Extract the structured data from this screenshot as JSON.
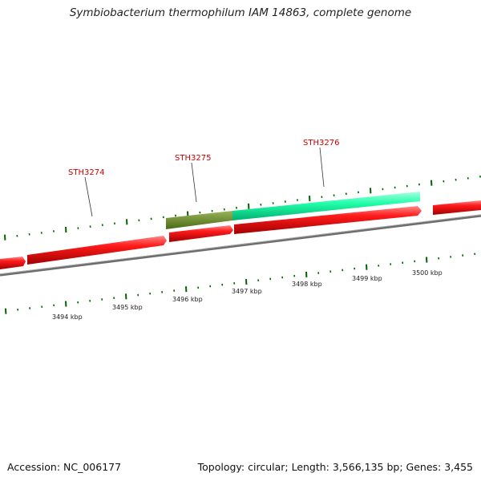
{
  "title": "Symbiobacterium thermophilum IAM 14863, complete genome",
  "footer": {
    "accession": "Accession: NC_006177",
    "summary": "Topology: circular; Length: 3,566,135 bp; Genes: 3,455"
  },
  "scale_labels": [
    "3494 kbp",
    "3495 kbp",
    "3496 kbp",
    "3497 kbp",
    "3498 kbp",
    "3499 kbp",
    "3500 kbp"
  ],
  "gene_labels": [
    "STH3274",
    "STH3275",
    "STH3276"
  ],
  "colors": {
    "forward_gene": "#ff0000",
    "gene_sth3275": "#6b8e23",
    "gene_sth3276": "#00ff99",
    "backbone": "#808080",
    "ticks": "#006400",
    "label_text": "#cc0000"
  }
}
